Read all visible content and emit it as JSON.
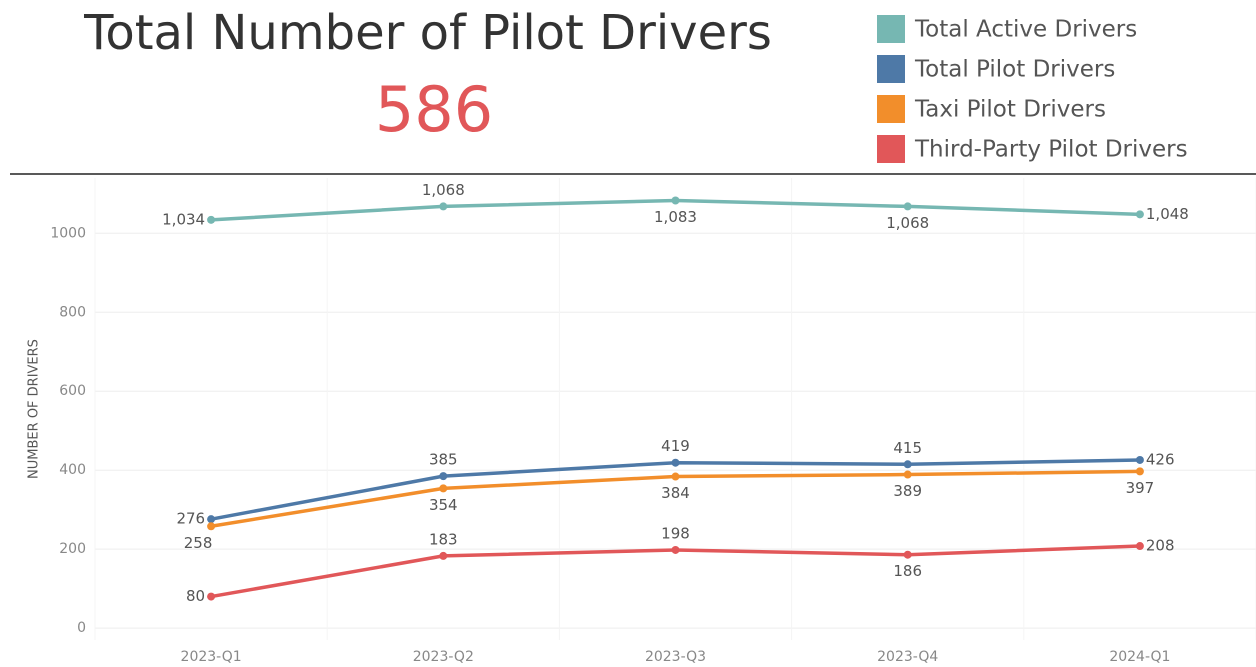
{
  "title": "Total Number of Pilot Drivers",
  "kpi": {
    "value": 586
  },
  "chart_data": {
    "type": "line",
    "y_label": "NUMBER OF DRIVERS",
    "categories": [
      "2023-Q1",
      "2023-Q2",
      "2023-Q3",
      "2023-Q4",
      "2024-Q1"
    ],
    "ylim": [
      -30,
      1140
    ],
    "yticks": [
      0,
      200,
      400,
      600,
      800,
      1000
    ],
    "grid": true,
    "series": [
      {
        "name": "Total Active Drivers",
        "color": "#76b7b2",
        "values": [
          1034,
          1068,
          1083,
          1068,
          1048
        ],
        "value_labels": [
          "1,034",
          "1,068",
          "1,083",
          "1,068",
          "1,048"
        ]
      },
      {
        "name": "Total Pilot Drivers",
        "color": "#4e79a7",
        "values": [
          276,
          385,
          419,
          415,
          426
        ]
      },
      {
        "name": "Taxi Pilot Drivers",
        "color": "#f28e2b",
        "values": [
          258,
          354,
          384,
          389,
          397
        ]
      },
      {
        "name": "Third-Party Pilot Drivers",
        "color": "#e15759",
        "values": [
          80,
          183,
          198,
          186,
          208
        ]
      }
    ]
  }
}
